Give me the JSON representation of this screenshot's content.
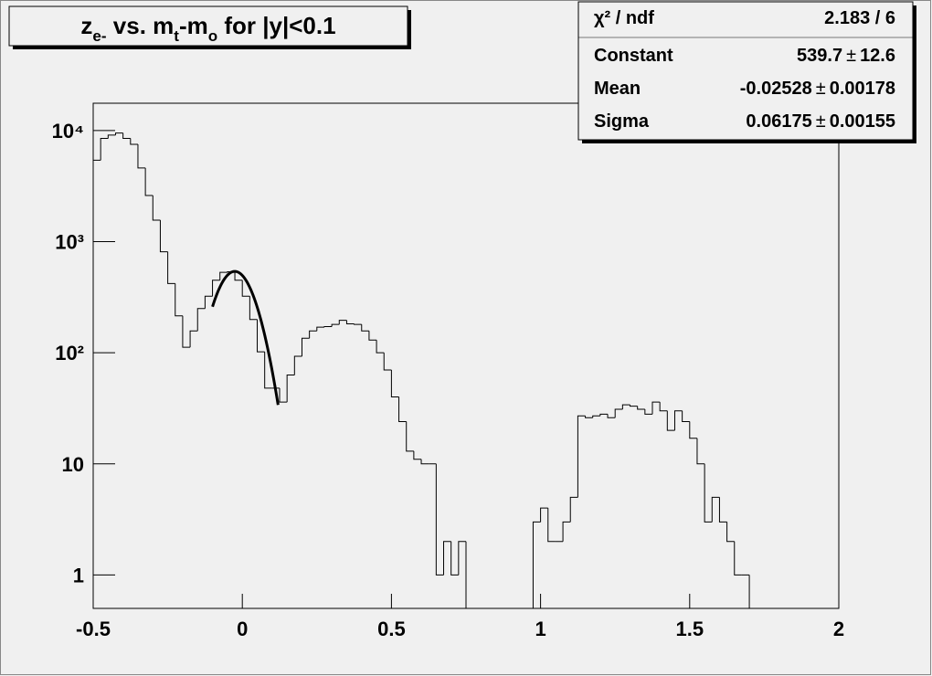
{
  "chart_data": {
    "type": "histogram",
    "title": [
      {
        "text": "z"
      },
      {
        "text": "e-",
        "sub": true
      },
      {
        "text": " vs. m"
      },
      {
        "text": "t",
        "sub": true
      },
      {
        "text": "-m"
      },
      {
        "text": "o",
        "sub": true
      },
      {
        "text": " for |y|<0.1"
      }
    ],
    "bins": [
      -0.5,
      -0.475,
      -0.45,
      -0.425,
      -0.4,
      -0.375,
      -0.35,
      -0.325,
      -0.3,
      -0.275,
      -0.25,
      -0.225,
      -0.2,
      -0.175,
      -0.15,
      -0.125,
      -0.1,
      -0.075,
      -0.05,
      -0.025,
      0,
      0.025,
      0.05,
      0.075,
      0.1,
      0.125,
      0.15,
      0.175,
      0.2,
      0.225,
      0.25,
      0.275,
      0.3,
      0.325,
      0.35,
      0.375,
      0.4,
      0.425,
      0.45,
      0.475,
      0.5,
      0.525,
      0.55,
      0.575,
      0.6,
      0.625,
      0.65,
      0.675,
      0.7,
      0.725,
      0.75,
      0.775,
      0.8,
      0.825,
      0.85,
      0.875,
      0.9,
      0.925,
      0.95,
      0.975,
      1,
      1.025,
      1.05,
      1.075,
      1.1,
      1.125,
      1.15,
      1.175,
      1.2,
      1.225,
      1.25,
      1.275,
      1.3,
      1.325,
      1.35,
      1.375,
      1.4,
      1.425,
      1.45,
      1.475,
      1.5,
      1.525,
      1.55,
      1.575,
      1.6,
      1.625,
      1.65,
      1.675,
      1.7,
      1.725,
      1.75,
      1.775,
      1.8,
      1.825,
      1.85,
      1.875,
      1.9,
      1.925,
      1.95,
      1.975,
      2
    ],
    "values": [
      5400,
      8500,
      9100,
      9500,
      8500,
      7500,
      4600,
      2600,
      1560,
      810,
      420,
      215,
      112,
      157,
      250,
      323,
      449,
      529,
      535,
      449,
      323,
      199,
      102,
      48,
      48,
      36,
      63,
      93,
      135,
      157,
      170,
      172,
      180,
      196,
      182,
      180,
      157,
      130,
      100,
      70,
      40,
      24,
      13,
      11,
      10,
      10,
      1,
      2,
      1,
      2,
      0,
      0,
      0,
      0,
      0,
      0,
      0,
      0,
      0,
      3,
      4,
      2,
      2,
      3,
      5,
      27,
      26,
      27,
      28,
      26,
      31,
      34,
      33,
      31,
      28,
      36,
      30,
      20,
      30,
      24,
      17,
      10,
      3,
      5,
      3,
      2,
      1,
      1,
      0,
      0,
      0,
      0,
      0,
      0,
      0,
      0,
      0,
      0,
      0,
      0
    ],
    "color": "#000000",
    "xlim": [
      -0.5,
      2
    ],
    "xticks": [
      -0.5,
      0,
      0.5,
      1,
      1.5,
      2
    ],
    "ylim": [
      0.5,
      17600
    ],
    "log_y": true,
    "yticks": [
      1,
      10,
      {
        "value": 100,
        "label": "10²"
      },
      {
        "value": 1000,
        "label": "10³"
      },
      {
        "value": 10000,
        "label": "10⁴"
      }
    ],
    "fit_xlim": [
      -0.1,
      0.12
    ],
    "stats": {
      "chi2": {
        "label": "χ² / ndf",
        "value": "2.183 / 6"
      },
      "separator": "±",
      "params": [
        {
          "label": "Constant",
          "value": 539.7,
          "error": 12.6
        },
        {
          "label": "Mean",
          "value": -0.02528,
          "error": 0.00178
        },
        {
          "label": "Sigma",
          "value": 0.06175,
          "error": 0.00155
        }
      ]
    }
  }
}
